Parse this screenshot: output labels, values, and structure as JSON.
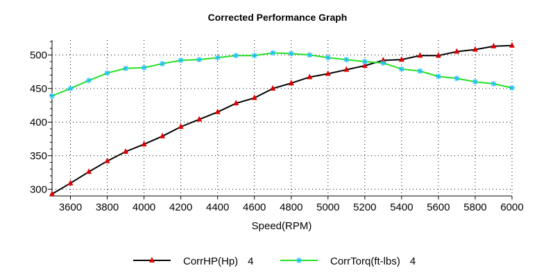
{
  "chart_data": {
    "type": "line",
    "title": "Corrected Performance Graph",
    "xlabel": "Speed(RPM)",
    "ylabel": "",
    "xlim": [
      3500,
      6000
    ],
    "ylim": [
      290,
      522
    ],
    "xticks": [
      3600,
      3800,
      4000,
      4200,
      4400,
      4600,
      4800,
      5000,
      5200,
      5400,
      5600,
      5800,
      6000
    ],
    "yticks": [
      300,
      350,
      400,
      450,
      500
    ],
    "grid": true,
    "legend_position": "bottom",
    "x": [
      3500,
      3600,
      3700,
      3800,
      3900,
      4000,
      4100,
      4200,
      4300,
      4400,
      4500,
      4600,
      4700,
      4800,
      4900,
      5000,
      5100,
      5200,
      5300,
      5400,
      5500,
      5600,
      5700,
      5800,
      5900,
      6000
    ],
    "series": [
      {
        "name": "CorrHP(Hp)",
        "legend_suffix": "4",
        "line_color": "#000000",
        "marker": "triangle",
        "marker_color": "#e00000",
        "values": [
          293,
          309,
          326,
          342,
          356,
          367,
          379,
          393,
          404,
          415,
          428,
          436,
          450,
          458,
          467,
          472,
          478,
          484,
          492,
          493,
          499,
          499,
          505,
          508,
          513,
          514
        ]
      },
      {
        "name": "CorrTorq(ft-lbs)",
        "legend_suffix": "4",
        "line_color": "#22e022",
        "marker": "asterisk",
        "marker_color": "#20c0f0",
        "values": [
          439,
          450,
          462,
          473,
          480,
          481,
          487,
          492,
          493,
          496,
          499,
          499,
          503,
          502,
          500,
          496,
          493,
          490,
          488,
          479,
          476,
          468,
          465,
          460,
          457,
          451
        ]
      }
    ]
  }
}
